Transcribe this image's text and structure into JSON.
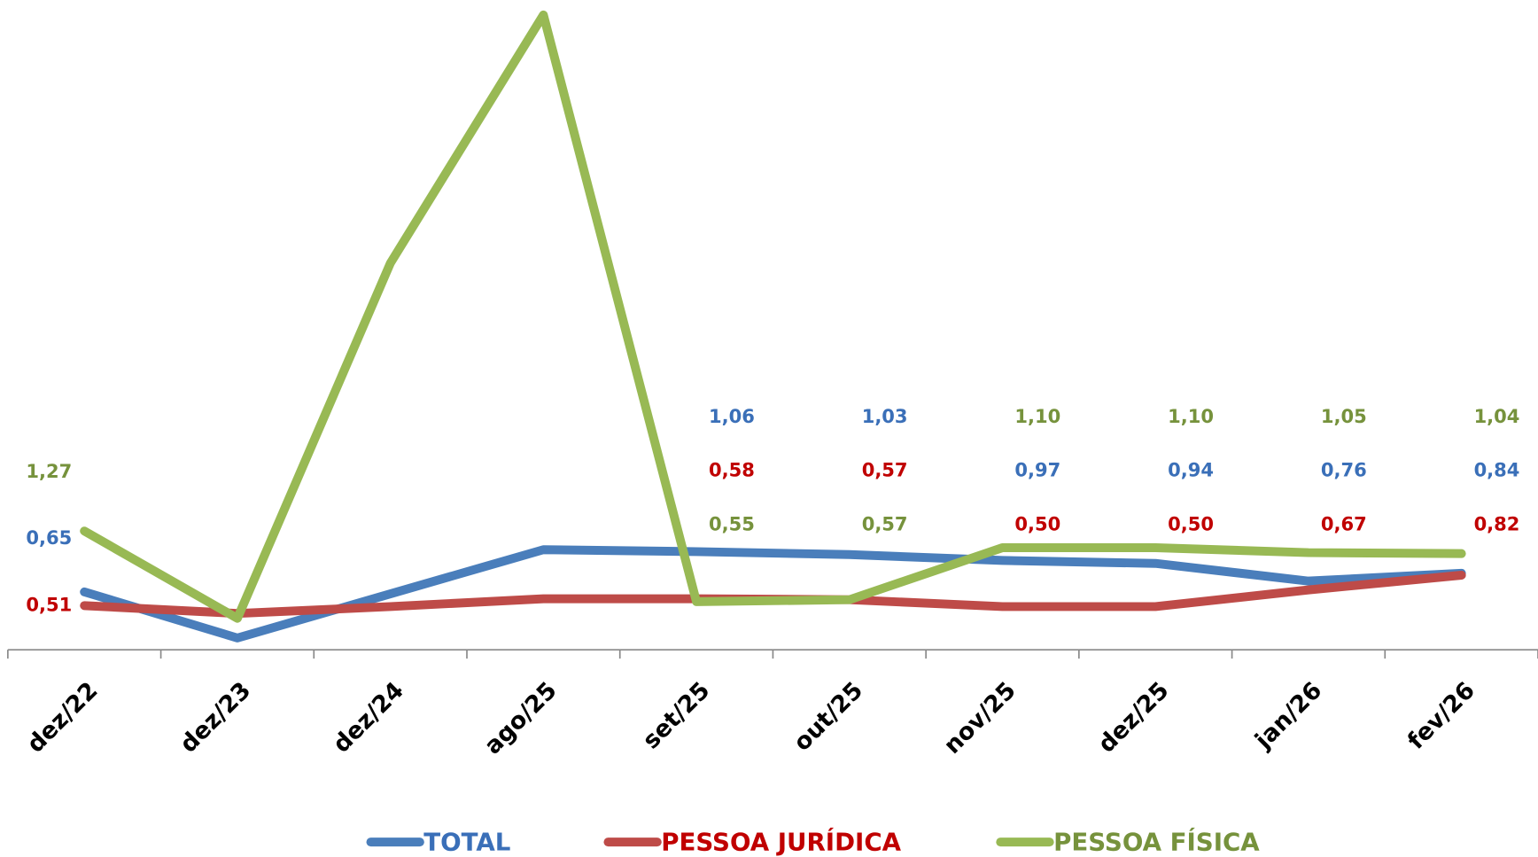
{
  "chart_data": {
    "type": "line",
    "categories": [
      "dez/22",
      "dez/23",
      "dez/24",
      "ago/25",
      "set/25",
      "out/25",
      "nov/25",
      "dez/25",
      "jan/26",
      "fev/26"
    ],
    "series": [
      {
        "name": "TOTAL",
        "color": "#4a7ebb",
        "label_color": "#3a6fb8",
        "values": [
          0.65,
          0.18,
          0.63,
          1.08,
          1.06,
          1.03,
          0.97,
          0.94,
          0.76,
          0.84
        ],
        "value_labels": [
          "0,65",
          null,
          null,
          null,
          "1,06",
          "1,03",
          "0,97",
          "0,94",
          "0,76",
          "0,84"
        ]
      },
      {
        "name": "PESSOA JURÍDICA",
        "color": "#be4b48",
        "label_color": "#c00000",
        "values": [
          0.51,
          0.43,
          0.5,
          0.58,
          0.58,
          0.57,
          0.5,
          0.5,
          0.67,
          0.82
        ],
        "value_labels": [
          "0,51",
          null,
          null,
          null,
          "0,58",
          "0,57",
          "0,50",
          "0,50",
          "0,67",
          "0,82"
        ]
      },
      {
        "name": "PESSOA FÍSICA",
        "color": "#98b954",
        "label_color": "#76923c",
        "values": [
          1.27,
          0.38,
          4.0,
          6.53,
          0.55,
          0.57,
          1.1,
          1.1,
          1.05,
          1.04
        ],
        "value_labels": [
          "1,27",
          null,
          null,
          null,
          "0,55",
          "0,57",
          "1,10",
          "1,10",
          "1,05",
          "1,04"
        ]
      }
    ],
    "legend": "bottom"
  }
}
